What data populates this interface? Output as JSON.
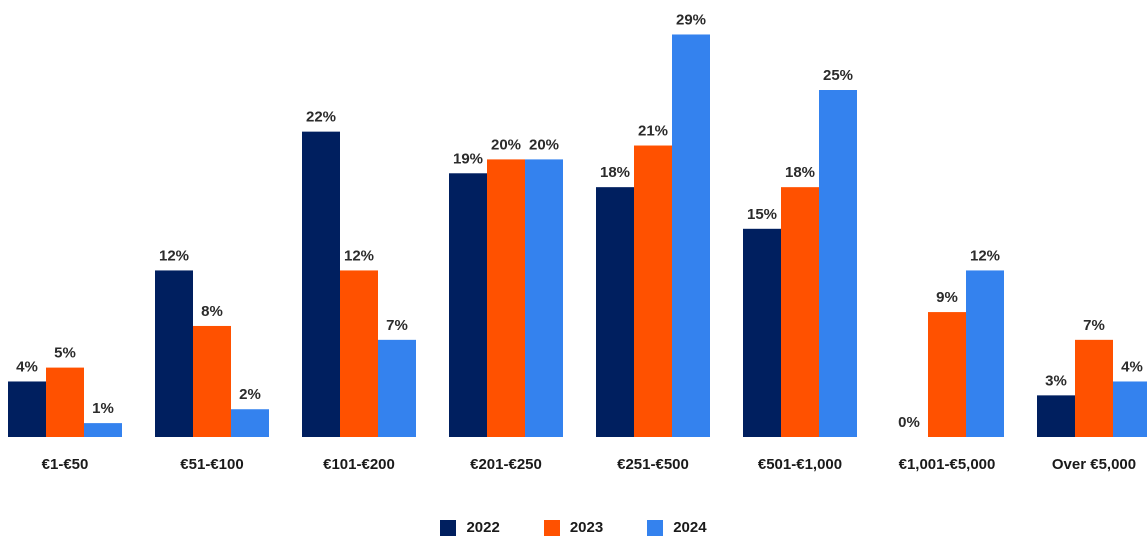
{
  "chart_data": {
    "type": "bar",
    "title": "",
    "xlabel": "",
    "ylabel": "",
    "ylim": [
      0,
      30
    ],
    "grid": false,
    "legend_placement": "bottom",
    "value_suffix": "%",
    "categories": [
      "€1-€50",
      "€51-€100",
      "€101-€200",
      "€201-€250",
      "€251-€500",
      "€501-€1,000",
      "€1,001-€5,000",
      "Over €5,000"
    ],
    "series": [
      {
        "name": "2022",
        "color": "#001f5f",
        "values": [
          4,
          12,
          22,
          19,
          18,
          15,
          0,
          3
        ]
      },
      {
        "name": "2023",
        "color": "#ff5100",
        "values": [
          5,
          8,
          12,
          20,
          21,
          18,
          9,
          7
        ]
      },
      {
        "name": "2024",
        "color": "#3482ee",
        "values": [
          1,
          2,
          7,
          20,
          29,
          25,
          12,
          4
        ]
      }
    ],
    "data_labels": [
      [
        "4%",
        "12%",
        "22%",
        "19%",
        "18%",
        "15%",
        "0%",
        "3%"
      ],
      [
        "5%",
        "8%",
        "12%",
        "20%",
        "21%",
        "18%",
        "9%",
        "7%"
      ],
      [
        "1%",
        "2%",
        "7%",
        "20%",
        "29%",
        "25%",
        "12%",
        "4%"
      ]
    ]
  },
  "legend": {
    "items": [
      {
        "label": "2022",
        "color": "#001f5f"
      },
      {
        "label": "2023",
        "color": "#ff5100"
      },
      {
        "label": "2024",
        "color": "#3482ee"
      }
    ]
  }
}
